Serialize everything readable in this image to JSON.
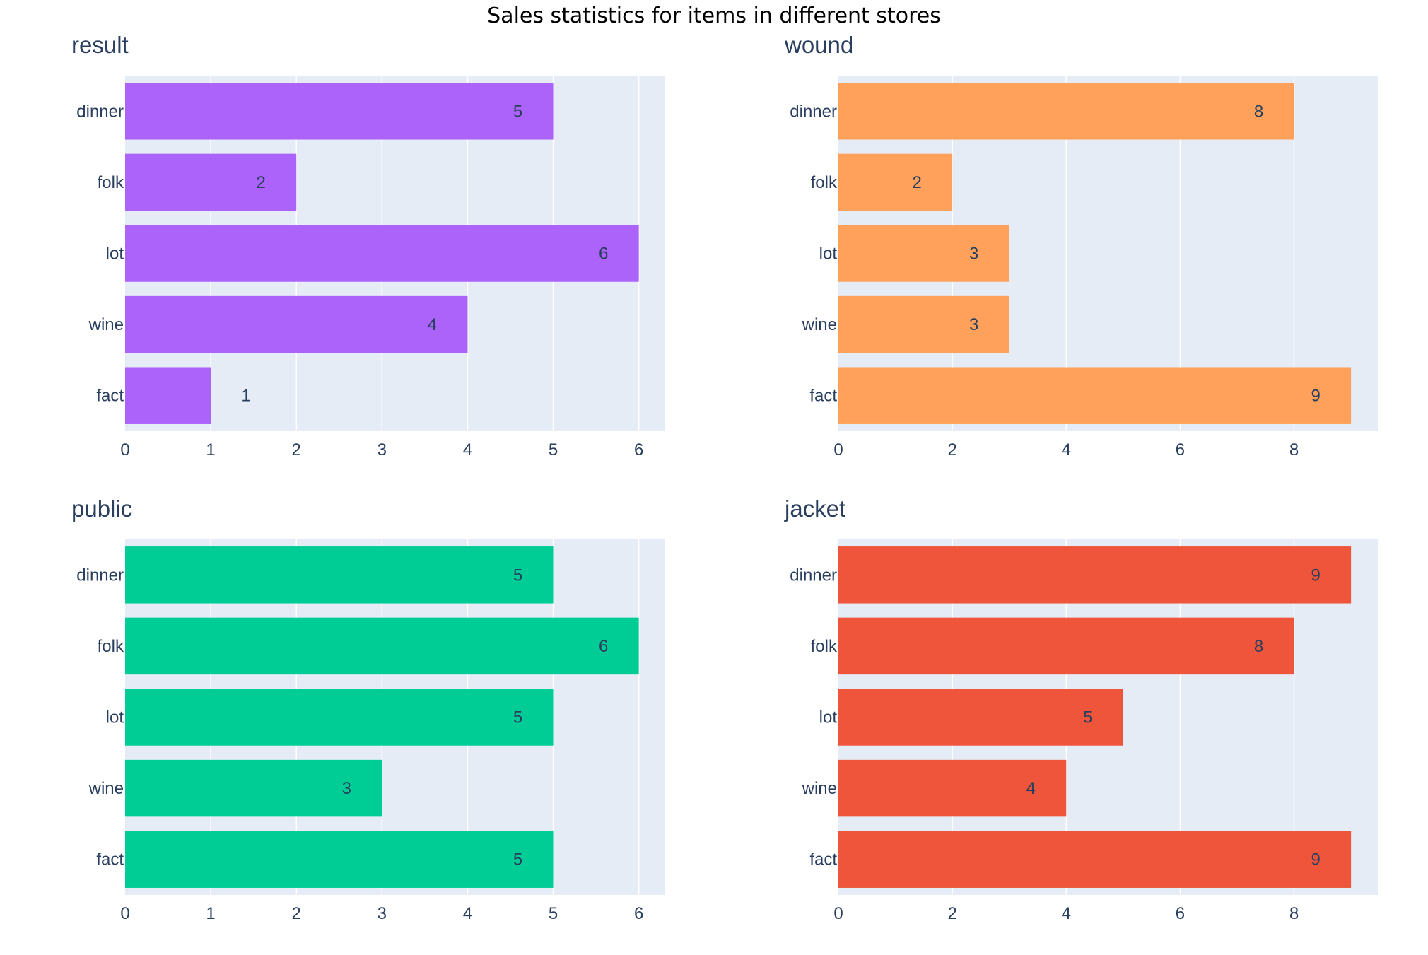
{
  "title": "Sales statistics for items in different stores",
  "chart_data": [
    {
      "type": "bar",
      "orientation": "horizontal",
      "title": "result",
      "color": "#ab63fa",
      "categories": [
        "dinner",
        "folk",
        "lot",
        "wine",
        "fact"
      ],
      "values": [
        5,
        2,
        6,
        4,
        1
      ],
      "xlim": [
        0,
        6.3
      ],
      "xticks": [
        0,
        1,
        2,
        3,
        4,
        5,
        6
      ],
      "xlabel": "",
      "ylabel": ""
    },
    {
      "type": "bar",
      "orientation": "horizontal",
      "title": "wound",
      "color": "#ffa15a",
      "categories": [
        "dinner",
        "folk",
        "lot",
        "wine",
        "fact"
      ],
      "values": [
        8,
        2,
        3,
        3,
        9
      ],
      "xlim": [
        0,
        9.47
      ],
      "xticks": [
        0,
        2,
        4,
        6,
        8
      ],
      "xlabel": "",
      "ylabel": ""
    },
    {
      "type": "bar",
      "orientation": "horizontal",
      "title": "public",
      "color": "#00cc96",
      "categories": [
        "dinner",
        "folk",
        "lot",
        "wine",
        "fact"
      ],
      "values": [
        5,
        6,
        5,
        3,
        5
      ],
      "xlim": [
        0,
        6.3
      ],
      "xticks": [
        0,
        1,
        2,
        3,
        4,
        5,
        6
      ],
      "xlabel": "",
      "ylabel": ""
    },
    {
      "type": "bar",
      "orientation": "horizontal",
      "title": "jacket",
      "color": "#ef553b",
      "categories": [
        "dinner",
        "folk",
        "lot",
        "wine",
        "fact"
      ],
      "values": [
        9,
        8,
        5,
        4,
        9
      ],
      "xlim": [
        0,
        9.47
      ],
      "xticks": [
        0,
        2,
        4,
        6,
        8
      ],
      "xlabel": "",
      "ylabel": ""
    }
  ]
}
